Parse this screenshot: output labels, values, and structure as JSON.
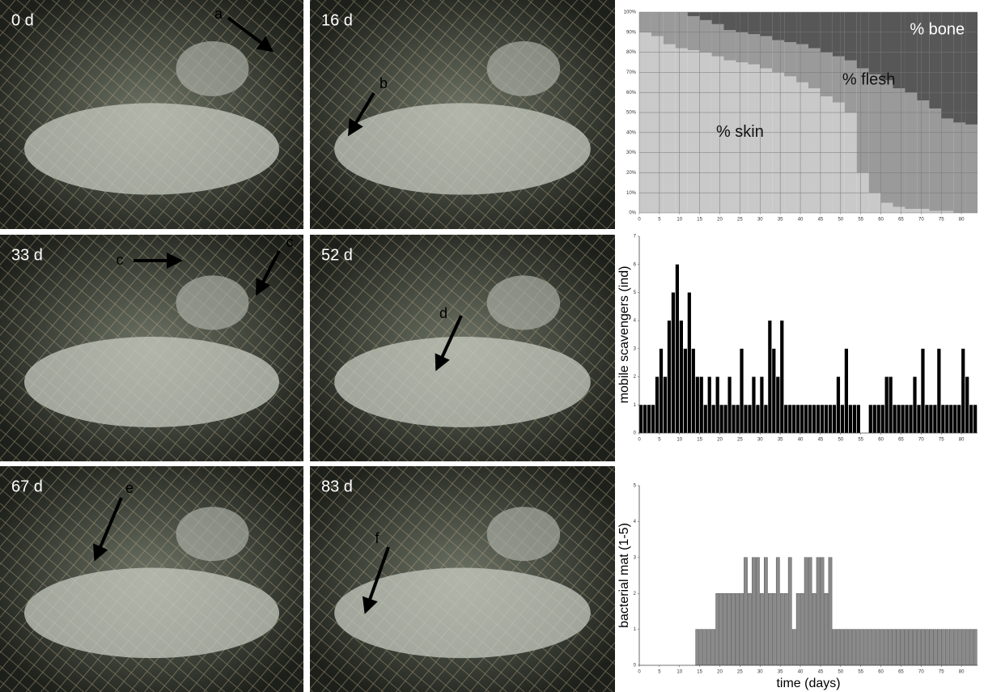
{
  "panels": [
    {
      "label": "0 d",
      "arrows": [
        "a"
      ]
    },
    {
      "label": "16 d",
      "arrows": [
        "b"
      ]
    },
    {
      "label": "33 d",
      "arrows": [
        "c",
        "c"
      ]
    },
    {
      "label": "52 d",
      "arrows": [
        "d"
      ]
    },
    {
      "label": "67 d",
      "arrows": [
        "e"
      ]
    },
    {
      "label": "83 d",
      "arrows": [
        "f"
      ]
    }
  ],
  "chart_data": [
    {
      "type": "stacked_bar",
      "x": [
        0,
        3,
        6,
        9,
        12,
        15,
        18,
        21,
        24,
        27,
        30,
        33,
        36,
        39,
        42,
        45,
        48,
        51,
        54,
        57,
        60,
        63,
        66,
        69,
        72,
        75,
        78,
        81,
        84
      ],
      "series": [
        {
          "name": "% skin",
          "color": "#c9c9c9",
          "values": [
            90,
            88,
            84,
            82,
            81,
            80,
            78,
            76,
            75,
            74,
            72,
            70,
            68,
            65,
            62,
            58,
            55,
            50,
            20,
            10,
            5,
            3,
            2,
            2,
            1,
            1,
            0,
            0,
            0
          ]
        },
        {
          "name": "% flesh",
          "color": "#9a9a9a",
          "values": [
            10,
            12,
            16,
            18,
            17,
            16,
            16,
            15,
            15,
            15,
            16,
            16,
            17,
            19,
            20,
            22,
            23,
            26,
            52,
            59,
            61,
            59,
            58,
            54,
            51,
            46,
            45,
            44,
            0
          ]
        },
        {
          "name": "% bone",
          "color": "#575757",
          "values": [
            0,
            0,
            0,
            0,
            2,
            4,
            6,
            9,
            10,
            11,
            12,
            14,
            15,
            16,
            18,
            20,
            22,
            24,
            28,
            31,
            34,
            38,
            40,
            44,
            48,
            53,
            55,
            56,
            100
          ]
        }
      ],
      "xlim": [
        0,
        84
      ],
      "ylim": [
        0,
        100
      ],
      "xticks": [
        0,
        5,
        10,
        15,
        20,
        25,
        30,
        35,
        40,
        45,
        50,
        55,
        60,
        65,
        70,
        75,
        80
      ],
      "yticks": [
        {
          "value": 0,
          "label": "0%"
        },
        {
          "value": 10,
          "label": "10%"
        },
        {
          "value": 20,
          "label": "20%"
        },
        {
          "value": 30,
          "label": "30%"
        },
        {
          "value": 40,
          "label": "40%"
        },
        {
          "value": 50,
          "label": "50%"
        },
        {
          "value": 60,
          "label": "60%"
        },
        {
          "value": 70,
          "label": "70%"
        },
        {
          "value": 80,
          "label": "80%"
        },
        {
          "value": 90,
          "label": "90%"
        },
        {
          "value": 100,
          "label": "100%"
        }
      ],
      "grid": true
    },
    {
      "type": "bar",
      "ylabel": "mobile scavengers (ind)",
      "color": "#000000",
      "x": [
        0,
        1,
        2,
        3,
        4,
        5,
        6,
        7,
        8,
        9,
        10,
        11,
        12,
        13,
        14,
        15,
        16,
        17,
        18,
        19,
        20,
        21,
        22,
        23,
        24,
        25,
        26,
        27,
        28,
        29,
        30,
        31,
        32,
        33,
        34,
        35,
        36,
        37,
        38,
        39,
        40,
        41,
        42,
        43,
        44,
        45,
        46,
        47,
        48,
        49,
        50,
        51,
        52,
        53,
        54,
        55,
        56,
        57,
        58,
        59,
        60,
        61,
        62,
        63,
        64,
        65,
        66,
        67,
        68,
        69,
        70,
        71,
        72,
        73,
        74,
        75,
        76,
        77,
        78,
        79,
        80,
        81,
        82,
        83
      ],
      "values": [
        1,
        1,
        1,
        1,
        2,
        3,
        2,
        4,
        5,
        6,
        4,
        3,
        5,
        3,
        2,
        2,
        1,
        2,
        1,
        2,
        1,
        1,
        2,
        1,
        1,
        3,
        1,
        1,
        2,
        1,
        2,
        1,
        4,
        3,
        2,
        4,
        1,
        1,
        1,
        1,
        1,
        1,
        1,
        1,
        1,
        1,
        1,
        1,
        1,
        2,
        1,
        3,
        1,
        1,
        1,
        0,
        0,
        1,
        1,
        1,
        1,
        2,
        2,
        1,
        1,
        1,
        1,
        1,
        2,
        1,
        3,
        1,
        1,
        1,
        3,
        1,
        1,
        1,
        1,
        1,
        3,
        2,
        1,
        1
      ],
      "xlim": [
        0,
        84
      ],
      "ylim": [
        0,
        7
      ],
      "xticks": [
        0,
        5,
        10,
        15,
        20,
        25,
        30,
        35,
        40,
        45,
        50,
        55,
        60,
        65,
        70,
        75,
        80
      ],
      "yticks": [
        0,
        1,
        2,
        3,
        4,
        5,
        6,
        7
      ]
    },
    {
      "type": "bar",
      "ylabel": "bacterial mat (1-5)",
      "xlabel": "time (days)",
      "color": "#8a8a8a",
      "x": [
        0,
        1,
        2,
        3,
        4,
        5,
        6,
        7,
        8,
        9,
        10,
        11,
        12,
        13,
        14,
        15,
        16,
        17,
        18,
        19,
        20,
        21,
        22,
        23,
        24,
        25,
        26,
        27,
        28,
        29,
        30,
        31,
        32,
        33,
        34,
        35,
        36,
        37,
        38,
        39,
        40,
        41,
        42,
        43,
        44,
        45,
        46,
        47,
        48,
        49,
        50,
        51,
        52,
        53,
        54,
        55,
        56,
        57,
        58,
        59,
        60,
        61,
        62,
        63,
        64,
        65,
        66,
        67,
        68,
        69,
        70,
        71,
        72,
        73,
        74,
        75,
        76,
        77,
        78,
        79,
        80,
        81,
        82,
        83
      ],
      "values": [
        0,
        0,
        0,
        0,
        0,
        0,
        0,
        0,
        0,
        0,
        0,
        0,
        0,
        0,
        1,
        1,
        1,
        1,
        1,
        2,
        2,
        2,
        2,
        2,
        2,
        2,
        3,
        2,
        3,
        3,
        2,
        3,
        2,
        2,
        3,
        2,
        2,
        3,
        1,
        2,
        2,
        3,
        3,
        2,
        3,
        3,
        2,
        3,
        1,
        1,
        1,
        1,
        1,
        1,
        1,
        1,
        1,
        1,
        1,
        1,
        1,
        1,
        1,
        1,
        1,
        1,
        1,
        1,
        1,
        1,
        1,
        1,
        1,
        1,
        1,
        1,
        1,
        1,
        1,
        1,
        1,
        1,
        1,
        1
      ],
      "xlim": [
        0,
        84
      ],
      "ylim": [
        0,
        5
      ],
      "xticks": [
        0,
        5,
        10,
        15,
        20,
        25,
        30,
        35,
        40,
        45,
        50,
        55,
        60,
        65,
        70,
        75,
        80
      ],
      "yticks": [
        0,
        1,
        2,
        3,
        4,
        5
      ]
    }
  ]
}
